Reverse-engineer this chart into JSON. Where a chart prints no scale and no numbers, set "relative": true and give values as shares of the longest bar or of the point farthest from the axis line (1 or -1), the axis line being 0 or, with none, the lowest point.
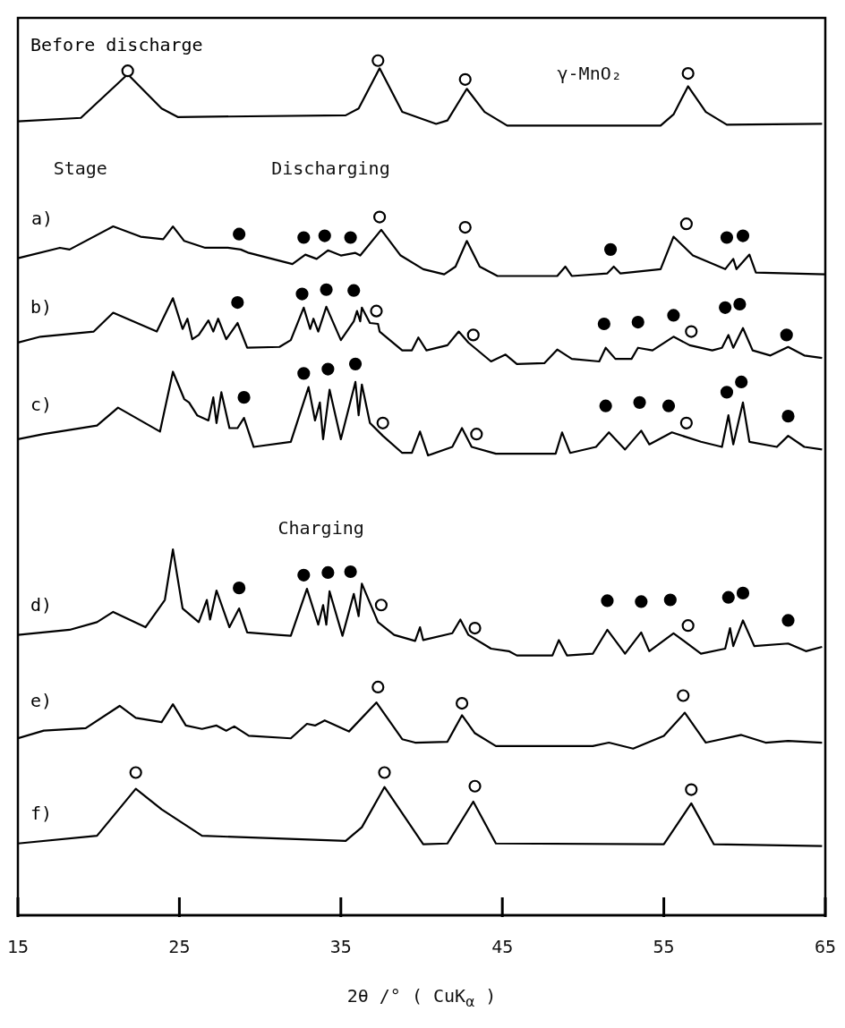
{
  "chart_data": {
    "type": "line",
    "relative": true,
    "xlabel": "2θ /° ( CuK$_{α}$ )",
    "xlim": [
      15,
      65
    ],
    "xticks": [
      15,
      25,
      35,
      45,
      55,
      65
    ],
    "marker": "none",
    "line_style": "solid",
    "annotations": [
      "γ-MnO₂",
      "Stage",
      "Discharging",
      "Charging"
    ],
    "series": [
      {
        "name": "Before discharge",
        "color": "#000000",
        "x": [
          15.0,
          18.9,
          21.8,
          23.9,
          24.9,
          35.3,
          36.1,
          37.4,
          38.8,
          40.9,
          41.6,
          42.8,
          43.9,
          45.3,
          54.8,
          55.6,
          56.5,
          57.6,
          58.9,
          64.8
        ],
        "values": [
          0.929,
          0.933,
          0.984,
          0.944,
          0.934,
          0.936,
          0.944,
          0.991,
          0.94,
          0.926,
          0.93,
          0.967,
          0.94,
          0.924,
          0.924,
          0.937,
          0.97,
          0.94,
          0.925,
          0.926
        ]
      },
      {
        "name": "a)",
        "color": "#000000",
        "x": [
          15.05,
          17.6,
          18.2,
          20.9,
          22.6,
          24.0,
          24.6,
          25.3,
          26.6,
          28.0,
          28.8,
          29.3,
          32.0,
          32.8,
          33.5,
          34.2,
          35.0,
          35.9,
          36.2,
          37.5,
          38.7,
          40.1,
          41.4,
          42.1,
          42.8,
          43.6,
          44.7,
          48.4,
          48.9,
          49.3,
          51.5,
          51.9,
          52.3,
          54.8,
          55.6,
          56.8,
          58.8,
          59.3,
          59.5,
          60.3,
          60.7,
          65.0
        ],
        "values": [
          0.769,
          0.781,
          0.779,
          0.806,
          0.794,
          0.791,
          0.806,
          0.789,
          0.781,
          0.781,
          0.779,
          0.775,
          0.762,
          0.773,
          0.768,
          0.778,
          0.772,
          0.775,
          0.772,
          0.802,
          0.772,
          0.756,
          0.75,
          0.759,
          0.789,
          0.759,
          0.748,
          0.748,
          0.759,
          0.748,
          0.751,
          0.759,
          0.751,
          0.756,
          0.794,
          0.772,
          0.756,
          0.768,
          0.756,
          0.773,
          0.752,
          0.75
        ]
      },
      {
        "name": "b)",
        "color": "#000000",
        "x": [
          15.0,
          16.4,
          19.7,
          20.9,
          23.6,
          24.6,
          25.2,
          25.5,
          25.8,
          26.2,
          26.8,
          27.1,
          27.4,
          27.9,
          28.6,
          29.2,
          31.2,
          31.9,
          32.7,
          33.1,
          33.3,
          33.6,
          34.1,
          35.0,
          35.8,
          36.0,
          36.2,
          36.3,
          36.8,
          37.3,
          37.4,
          38.8,
          39.4,
          39.8,
          40.3,
          41.6,
          42.3,
          42.9,
          44.3,
          45.2,
          45.9,
          47.6,
          48.4,
          49.3,
          51.0,
          51.4,
          52.0,
          53.0,
          53.4,
          54.3,
          55.6,
          56.6,
          58.0,
          58.6,
          59.0,
          59.3,
          59.9,
          60.5,
          61.6,
          62.7,
          63.7,
          64.8
        ],
        "values": [
          0.67,
          0.677,
          0.683,
          0.705,
          0.683,
          0.722,
          0.686,
          0.698,
          0.674,
          0.679,
          0.696,
          0.683,
          0.698,
          0.674,
          0.693,
          0.664,
          0.665,
          0.673,
          0.711,
          0.686,
          0.698,
          0.683,
          0.712,
          0.673,
          0.695,
          0.707,
          0.695,
          0.711,
          0.693,
          0.692,
          0.683,
          0.661,
          0.661,
          0.676,
          0.661,
          0.667,
          0.683,
          0.67,
          0.648,
          0.656,
          0.645,
          0.646,
          0.662,
          0.651,
          0.648,
          0.664,
          0.651,
          0.651,
          0.664,
          0.661,
          0.677,
          0.667,
          0.661,
          0.664,
          0.679,
          0.664,
          0.687,
          0.661,
          0.655,
          0.665,
          0.655,
          0.652
        ]
      },
      {
        "name": "c)",
        "color": "#000000",
        "x": [
          15.0,
          16.6,
          19.9,
          21.2,
          23.8,
          24.6,
          25.3,
          25.6,
          26.1,
          26.8,
          27.1,
          27.3,
          27.6,
          28.1,
          28.6,
          29.0,
          29.6,
          31.9,
          33.0,
          33.4,
          33.7,
          33.9,
          34.3,
          35.0,
          35.9,
          36.1,
          36.3,
          36.8,
          37.6,
          38.8,
          39.4,
          39.9,
          40.4,
          41.9,
          42.5,
          43.1,
          44.6,
          48.3,
          48.7,
          49.2,
          50.8,
          51.6,
          52.6,
          53.6,
          54.1,
          55.5,
          57.3,
          58.6,
          59.0,
          59.3,
          59.9,
          60.3,
          62.0,
          62.7,
          63.7,
          64.8
        ],
        "values": [
          0.557,
          0.563,
          0.573,
          0.594,
          0.566,
          0.636,
          0.604,
          0.6,
          0.585,
          0.579,
          0.606,
          0.576,
          0.612,
          0.57,
          0.57,
          0.582,
          0.548,
          0.554,
          0.618,
          0.579,
          0.6,
          0.557,
          0.615,
          0.557,
          0.624,
          0.585,
          0.621,
          0.576,
          0.561,
          0.541,
          0.541,
          0.566,
          0.538,
          0.548,
          0.57,
          0.548,
          0.54,
          0.54,
          0.565,
          0.541,
          0.548,
          0.565,
          0.545,
          0.567,
          0.551,
          0.565,
          0.554,
          0.548,
          0.585,
          0.551,
          0.6,
          0.554,
          0.548,
          0.561,
          0.548,
          0.545
        ]
      },
      {
        "name": "d)",
        "color": "#000000",
        "x": [
          15.0,
          18.2,
          19.9,
          20.9,
          22.9,
          24.1,
          24.6,
          25.2,
          26.2,
          26.7,
          26.9,
          27.3,
          28.1,
          28.7,
          29.2,
          31.1,
          31.9,
          32.9,
          33.6,
          33.9,
          34.1,
          34.3,
          35.1,
          35.8,
          36.1,
          36.3,
          37.3,
          38.3,
          39.6,
          39.9,
          40.1,
          41.9,
          42.4,
          42.9,
          44.3,
          45.4,
          45.9,
          48.1,
          48.5,
          49.0,
          50.6,
          51.5,
          52.6,
          53.6,
          54.1,
          55.6,
          57.3,
          58.8,
          59.1,
          59.3,
          59.9,
          60.6,
          62.7,
          63.8,
          64.8
        ],
        "values": [
          0.328,
          0.334,
          0.343,
          0.355,
          0.337,
          0.369,
          0.428,
          0.359,
          0.343,
          0.369,
          0.346,
          0.38,
          0.337,
          0.359,
          0.331,
          0.328,
          0.327,
          0.382,
          0.34,
          0.363,
          0.34,
          0.379,
          0.327,
          0.376,
          0.35,
          0.388,
          0.343,
          0.328,
          0.321,
          0.337,
          0.322,
          0.33,
          0.346,
          0.328,
          0.312,
          0.309,
          0.304,
          0.304,
          0.322,
          0.304,
          0.306,
          0.334,
          0.306,
          0.331,
          0.309,
          0.33,
          0.306,
          0.312,
          0.336,
          0.315,
          0.345,
          0.315,
          0.318,
          0.309,
          0.314
        ]
      },
      {
        "name": "e)",
        "color": "#000000",
        "x": [
          15.0,
          16.6,
          19.2,
          21.3,
          22.3,
          23.9,
          24.6,
          25.4,
          26.4,
          27.3,
          27.9,
          28.4,
          29.3,
          31.9,
          32.9,
          33.4,
          34.0,
          35.5,
          37.2,
          38.8,
          39.6,
          41.6,
          42.5,
          43.3,
          44.6,
          50.6,
          51.6,
          53.1,
          55.0,
          56.3,
          57.6,
          59.8,
          61.3,
          62.7,
          64.8
        ],
        "values": [
          0.207,
          0.216,
          0.219,
          0.245,
          0.231,
          0.226,
          0.247,
          0.222,
          0.218,
          0.222,
          0.216,
          0.221,
          0.21,
          0.207,
          0.224,
          0.222,
          0.228,
          0.215,
          0.249,
          0.206,
          0.202,
          0.203,
          0.234,
          0.213,
          0.198,
          0.198,
          0.202,
          0.195,
          0.21,
          0.237,
          0.202,
          0.211,
          0.202,
          0.204,
          0.202
        ]
      },
      {
        "name": "f)",
        "color": "#000000",
        "x": [
          15.0,
          19.9,
          22.3,
          23.9,
          26.4,
          35.3,
          36.3,
          37.7,
          40.1,
          41.6,
          43.2,
          44.6,
          55.0,
          56.7,
          58.1,
          64.8
        ],
        "values": [
          0.084,
          0.093,
          0.148,
          0.124,
          0.093,
          0.087,
          0.103,
          0.15,
          0.083,
          0.084,
          0.133,
          0.084,
          0.083,
          0.131,
          0.083,
          0.081
        ]
      },
      {
        "type": "scatter",
        "marker": "circle",
        "color": "#ffffff",
        "x": [
          21.8,
          37.3,
          42.7,
          56.5,
          37.4,
          42.7,
          56.4,
          37.2,
          43.2,
          56.7,
          37.6,
          43.4,
          56.4,
          37.5,
          43.3,
          56.5,
          37.3,
          42.5,
          56.2,
          22.3,
          37.7,
          43.3,
          56.7
        ],
        "values": [
          0.988,
          1.0,
          0.978,
          0.985,
          0.817,
          0.805,
          0.809,
          0.707,
          0.679,
          0.683,
          0.576,
          0.563,
          0.576,
          0.363,
          0.336,
          0.339,
          0.267,
          0.248,
          0.257,
          0.167,
          0.167,
          0.151,
          0.147
        ]
      },
      {
        "type": "scatter",
        "marker": "circle",
        "color": "#000000",
        "x": [
          28.7,
          32.7,
          34.0,
          35.6,
          51.7,
          58.9,
          59.9,
          28.6,
          32.6,
          34.1,
          35.8,
          51.3,
          53.4,
          55.6,
          58.8,
          59.7,
          62.6,
          29.0,
          32.7,
          34.2,
          35.9,
          51.4,
          53.5,
          55.3,
          58.9,
          59.8,
          62.7,
          28.7,
          32.7,
          34.2,
          35.6,
          51.5,
          53.6,
          55.4,
          59.0,
          59.9,
          62.7
        ],
        "values": [
          0.797,
          0.793,
          0.795,
          0.793,
          0.779,
          0.793,
          0.795,
          0.717,
          0.727,
          0.732,
          0.731,
          0.692,
          0.694,
          0.702,
          0.711,
          0.715,
          0.679,
          0.606,
          0.634,
          0.639,
          0.645,
          0.596,
          0.6,
          0.596,
          0.612,
          0.624,
          0.584,
          0.383,
          0.398,
          0.401,
          0.402,
          0.368,
          0.367,
          0.369,
          0.372,
          0.377,
          0.345
        ]
      }
    ]
  }
}
